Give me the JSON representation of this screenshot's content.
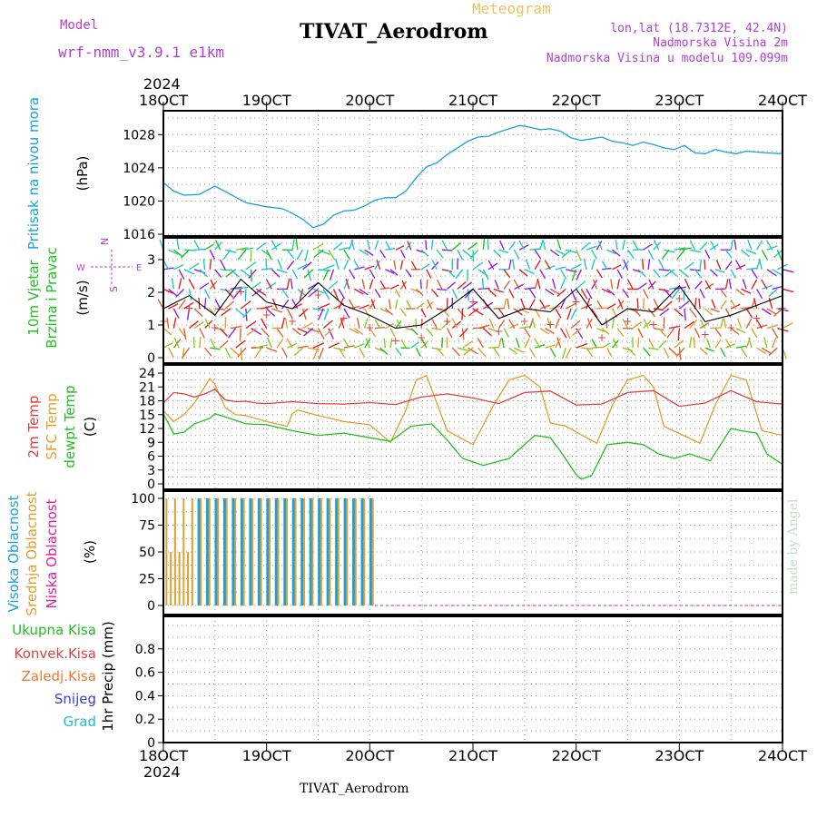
{
  "header": {
    "model_label": "Model",
    "model_name": "wrf-nmm_v3.9.1 e1km",
    "meteogram_label": "Meteogram",
    "station_title": "TIVAT_Aerodrom",
    "lonlat": "lon,lat (18.7312E, 42.4N)",
    "elevation": "Nadmorska Visina 2m",
    "model_elevation": "Nadmorska Visina u modelu 109.099m"
  },
  "footer": {
    "station": "TIVAT_Aerodrom"
  },
  "watermark": "made by Angel",
  "colors": {
    "pressure": "#1aa0e0",
    "temp2m": "#e04040",
    "sfc": "#e0a030",
    "dewpt": "#20c020",
    "high_cloud": "#1aa0e0",
    "mid_cloud": "#e0a030",
    "low_cloud": "#e0209e",
    "wind_speed_line": "#000000",
    "gust_marker": "#e04040",
    "header_purple": "#b040d0",
    "meteogram_orange": "#f0c060"
  },
  "chart_data": [
    {
      "id": "pressure",
      "type": "line",
      "labels": [
        "Pritisak na nivou mora"
      ],
      "unit_label": "(hPa)",
      "ylim": [
        1016,
        1030
      ],
      "yticks": [
        1016,
        1020,
        1024,
        1028
      ],
      "grid": true,
      "series": [
        {
          "key": "mslp",
          "x": [
            0,
            0.1,
            0.2,
            0.35,
            0.5,
            0.65,
            0.8,
            1.0,
            1.15,
            1.25,
            1.35,
            1.45,
            1.55,
            1.65,
            1.75,
            1.85,
            1.95,
            2.05,
            2.15,
            2.25,
            2.35,
            2.45,
            2.55,
            2.65,
            2.75,
            2.85,
            2.95,
            3.05,
            3.15,
            3.25,
            3.35,
            3.45,
            3.55,
            3.65,
            3.75,
            3.85,
            3.95,
            4.05,
            4.15,
            4.25,
            4.35,
            4.45,
            4.55,
            4.65,
            4.75,
            4.85,
            4.95,
            5.05,
            5.15,
            5.25,
            5.35,
            5.45,
            5.55,
            5.65,
            5.75,
            5.85,
            6.0
          ],
          "values": [
            1022.2,
            1021.2,
            1020.7,
            1020.8,
            1021.8,
            1020.8,
            1019.8,
            1019.3,
            1019.1,
            1018.5,
            1017.8,
            1016.8,
            1017.2,
            1018.3,
            1018.8,
            1018.9,
            1019.4,
            1020.1,
            1020.4,
            1020.4,
            1021.2,
            1022.8,
            1024.1,
            1024.6,
            1025.6,
            1026.4,
            1027.2,
            1027.7,
            1027.8,
            1028.3,
            1028.7,
            1029.1,
            1028.9,
            1028.6,
            1028.7,
            1028.4,
            1027.6,
            1027.3,
            1027.5,
            1027.7,
            1027.2,
            1027.0,
            1026.7,
            1027.1,
            1026.8,
            1026.4,
            1026.2,
            1026.7,
            1025.8,
            1025.7,
            1026.2,
            1025.9,
            1025.7,
            1026.0,
            1025.9,
            1025.8,
            1025.7
          ]
        }
      ]
    },
    {
      "id": "wind",
      "type": "line",
      "labels": [
        "10m Vjetar",
        "Brzina i Pravac"
      ],
      "unit_label": "(m/s)",
      "compass": {
        "north": "N",
        "west": "W",
        "east": "E",
        "south": "S"
      },
      "ylim": [
        0,
        3.5
      ],
      "yticks": [
        0,
        1,
        2,
        3
      ],
      "grid": true,
      "series": [
        {
          "key": "speed",
          "x": [
            0,
            0.25,
            0.5,
            0.75,
            1.0,
            1.25,
            1.5,
            1.75,
            2.0,
            2.25,
            2.5,
            2.75,
            3.0,
            3.25,
            3.5,
            3.75,
            4.0,
            4.25,
            4.5,
            4.75,
            5.0,
            5.25,
            5.5,
            5.75,
            6.0
          ],
          "values": [
            1.5,
            1.9,
            1.3,
            2.4,
            1.7,
            1.5,
            2.3,
            1.6,
            1.3,
            0.9,
            1.0,
            1.5,
            2.1,
            1.2,
            1.5,
            1.4,
            2.1,
            1.0,
            1.5,
            1.4,
            2.2,
            1.1,
            1.3,
            1.6,
            1.9
          ]
        }
      ],
      "wind_samples": 120
    },
    {
      "id": "temperature",
      "type": "line",
      "labels": [
        "2m Temp",
        "SFC Temp",
        "dewpt Temp"
      ],
      "unit_label": "(C)",
      "ylim": [
        0,
        24
      ],
      "yticks": [
        0,
        3,
        6,
        9,
        12,
        15,
        18,
        21,
        24
      ],
      "grid": true,
      "series": [
        {
          "key": "t2m",
          "name": "2m Temp",
          "x": [
            0,
            0.1,
            0.2,
            0.3,
            0.4,
            0.5,
            0.6,
            0.7,
            0.8,
            0.9,
            1.0,
            1.25,
            1.5,
            1.75,
            2.0,
            2.25,
            2.5,
            2.75,
            3.0,
            3.25,
            3.5,
            3.75,
            4.0,
            4.25,
            4.5,
            4.75,
            5.0,
            5.25,
            5.5,
            5.75,
            6.0
          ],
          "values": [
            17.5,
            19.8,
            19.5,
            18.8,
            19.5,
            20.5,
            18.2,
            17.8,
            17.9,
            17.5,
            17.4,
            17.8,
            17.4,
            17.3,
            17.6,
            17.2,
            18.8,
            19.5,
            18.6,
            17.4,
            19.8,
            20.1,
            17.1,
            17.3,
            19.8,
            20.2,
            16.8,
            17.5,
            20.2,
            17.8,
            17.3
          ]
        },
        {
          "key": "tsfc",
          "name": "SFC Temp",
          "x": [
            0,
            0.1,
            0.2,
            0.3,
            0.45,
            0.5,
            0.6,
            0.7,
            0.8,
            1.0,
            1.2,
            1.25,
            1.3,
            1.5,
            1.75,
            2.0,
            2.2,
            2.35,
            2.45,
            2.55,
            2.75,
            3.0,
            3.2,
            3.35,
            3.5,
            3.65,
            3.75,
            3.9,
            4.2,
            4.35,
            4.5,
            4.65,
            4.75,
            4.85,
            5.2,
            5.35,
            5.5,
            5.65,
            5.8,
            6.0
          ],
          "values": [
            15.8,
            13.5,
            15.0,
            17.5,
            22.8,
            21.5,
            16.5,
            15.0,
            14.8,
            13.5,
            12.5,
            15.2,
            16.0,
            14.8,
            13.5,
            12.8,
            9.0,
            16.0,
            22.5,
            23.5,
            11.5,
            8.5,
            17.0,
            22.5,
            23.5,
            21.0,
            13.2,
            12.5,
            8.8,
            17.0,
            22.5,
            23.5,
            21.0,
            12.5,
            8.8,
            17.2,
            23.5,
            22.5,
            11.5,
            10.5
          ]
        },
        {
          "key": "td",
          "name": "dewpt Temp",
          "x": [
            0,
            0.1,
            0.2,
            0.3,
            0.45,
            0.5,
            0.6,
            0.8,
            1.0,
            1.25,
            1.5,
            1.75,
            2.0,
            2.2,
            2.4,
            2.6,
            2.75,
            2.9,
            3.1,
            3.35,
            3.5,
            3.6,
            3.75,
            3.85,
            4.0,
            4.05,
            4.15,
            4.3,
            4.5,
            4.65,
            4.8,
            4.95,
            5.1,
            5.3,
            5.5,
            5.6,
            5.75,
            5.85,
            6.0
          ],
          "values": [
            15.2,
            10.8,
            11.2,
            13.0,
            14.2,
            15.2,
            14.5,
            13.0,
            12.8,
            11.5,
            10.5,
            11.0,
            10.0,
            9.2,
            12.5,
            13.0,
            9.5,
            5.5,
            4.0,
            5.5,
            8.5,
            10.5,
            10.0,
            7.0,
            2.0,
            1.0,
            1.8,
            8.5,
            9.0,
            8.5,
            6.5,
            5.5,
            6.5,
            5.0,
            12.0,
            11.5,
            11.0,
            6.5,
            4.2
          ]
        }
      ]
    },
    {
      "id": "cloud",
      "type": "bar",
      "labels": [
        "Visoka Oblacnost",
        "Srednja Oblacnost",
        "Niska Oblacnost"
      ],
      "unit_label": "(%)",
      "ylim": [
        0,
        100
      ],
      "yticks": [
        0,
        25,
        50,
        75,
        100
      ],
      "grid": true,
      "x_end": 2.05,
      "note": "cloud cover bars present until 20 Oct 01 UTC, zero afterwards"
    },
    {
      "id": "precip",
      "type": "line",
      "labels": [
        "Ukupna Kisa",
        "Konvek.Kisa",
        "Zaledj.Kisa",
        "Snijeg",
        "Grad"
      ],
      "label_colors": [
        "#20c020",
        "#e04040",
        "#f07830",
        "#3a3ae0",
        "#20c0c0"
      ],
      "unit_label": "1hr Precip (mm)",
      "ylim": [
        0,
        1
      ],
      "yticks": [
        0,
        0.2,
        0.4,
        0.6,
        0.8
      ],
      "grid": true,
      "series": [
        {
          "key": "total",
          "x": [
            0,
            6
          ],
          "values": [
            0,
            0
          ]
        }
      ]
    }
  ],
  "time_axis": {
    "year": "2024",
    "ticks": [
      "18OCT",
      "19OCT",
      "20OCT",
      "21OCT",
      "22OCT",
      "23OCT",
      "24OCT"
    ]
  }
}
